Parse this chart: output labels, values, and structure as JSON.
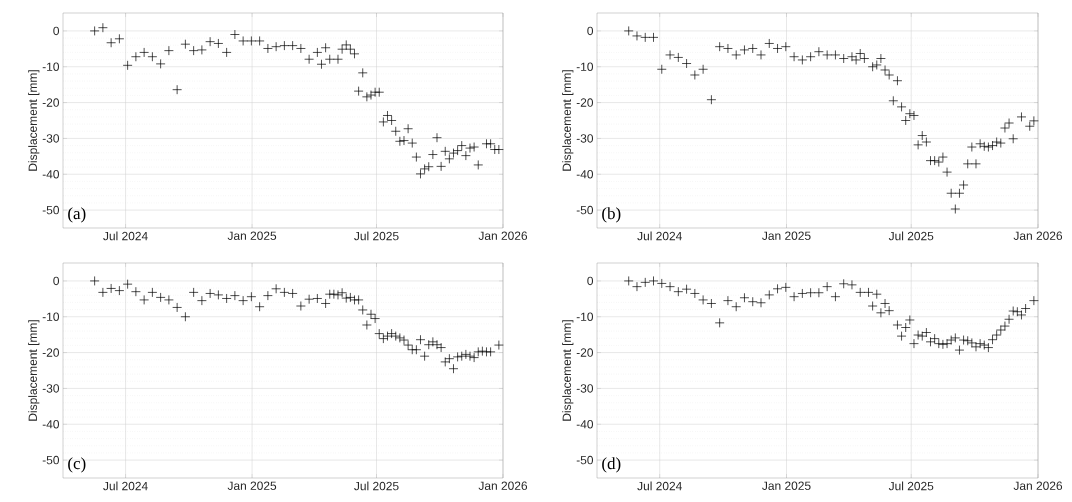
{
  "chart_data": [
    {
      "type": "scatter",
      "ylabel": "Displacement [mm]",
      "annotations": [
        "(a)"
      ],
      "color": "#000000",
      "marker": "cross",
      "grid": true,
      "xlim": [
        "2024-04-01",
        "2026-01-01"
      ],
      "xticks": [
        {
          "value": "2024-07-01",
          "label": "Jul 2024"
        },
        {
          "value": "2025-01-01",
          "label": "Jan 2025"
        },
        {
          "value": "2025-07-01",
          "label": "Jul 2025"
        },
        {
          "value": "2026-01-01",
          "label": "Jan 2026"
        }
      ],
      "ylim": [
        -55,
        5
      ],
      "yticks": [
        -50,
        -40,
        -30,
        -20,
        -10,
        0
      ],
      "x": [
        "2024-05-17",
        "2024-05-29",
        "2024-06-10",
        "2024-06-22",
        "2024-07-04",
        "2024-07-16",
        "2024-07-28",
        "2024-08-09",
        "2024-08-21",
        "2024-09-02",
        "2024-09-14",
        "2024-09-26",
        "2024-10-08",
        "2024-10-20",
        "2024-11-01",
        "2024-11-13",
        "2024-11-25",
        "2024-12-07",
        "2024-12-19",
        "2024-12-31",
        "2025-01-12",
        "2025-01-24",
        "2025-02-05",
        "2025-02-17",
        "2025-03-01",
        "2025-03-13",
        "2025-03-25",
        "2025-04-06",
        "2025-04-12",
        "2025-04-18",
        "2025-04-24",
        "2025-05-06",
        "2025-05-12",
        "2025-05-18",
        "2025-05-24",
        "2025-05-30",
        "2025-06-05",
        "2025-06-11",
        "2025-06-17",
        "2025-06-23",
        "2025-06-29",
        "2025-07-05",
        "2025-07-11",
        "2025-07-17",
        "2025-07-23",
        "2025-07-29",
        "2025-08-04",
        "2025-08-10",
        "2025-08-16",
        "2025-08-22",
        "2025-08-28",
        "2025-09-03",
        "2025-09-09",
        "2025-09-15",
        "2025-09-21",
        "2025-09-27",
        "2025-10-03",
        "2025-10-09",
        "2025-10-15",
        "2025-10-21",
        "2025-10-27",
        "2025-11-02",
        "2025-11-08",
        "2025-11-14",
        "2025-11-20",
        "2025-11-26",
        "2025-12-08",
        "2025-12-14",
        "2025-12-20",
        "2025-12-26"
      ],
      "values": [
        0,
        0.9,
        -3.3,
        -2.2,
        -9.6,
        -7.2,
        -6.0,
        -7.2,
        -9.2,
        -5.5,
        -16.4,
        -3.7,
        -5.5,
        -5.3,
        -3.0,
        -3.5,
        -6.0,
        -1.0,
        -2.8,
        -2.8,
        -2.8,
        -4.9,
        -4.4,
        -4.1,
        -4.1,
        -4.9,
        -7.9,
        -6.0,
        -9.3,
        -4.7,
        -7.9,
        -7.9,
        -5.1,
        -3.9,
        -5.1,
        -6.4,
        -16.8,
        -11.7,
        -18.4,
        -17.9,
        -17.1,
        -17.1,
        -25.4,
        -23.6,
        -25.0,
        -28.0,
        -30.8,
        -30.6,
        -27.3,
        -31.3,
        -35.2,
        -39.9,
        -38.5,
        -37.9,
        -34.5,
        -29.8,
        -37.8,
        -33.6,
        -35.7,
        -34.1,
        -33.4,
        -32.0,
        -34.8,
        -32.7,
        -32.4,
        -37.4,
        -31.5,
        -31.5,
        -33.1,
        -33.1
      ]
    },
    {
      "type": "scatter",
      "ylabel": "Displacement [mm]",
      "annotations": [
        "(b)"
      ],
      "color": "#000000",
      "marker": "cross",
      "grid": true,
      "xlim": [
        "2024-04-01",
        "2026-01-01"
      ],
      "xticks": [
        {
          "value": "2024-07-01",
          "label": "Jul 2024"
        },
        {
          "value": "2025-01-01",
          "label": "Jan 2025"
        },
        {
          "value": "2025-07-01",
          "label": "Jul 2025"
        },
        {
          "value": "2026-01-01",
          "label": "Jan 2026"
        }
      ],
      "ylim": [
        -55,
        5
      ],
      "yticks": [
        -50,
        -40,
        -30,
        -20,
        -10,
        0
      ],
      "x": [
        "2024-05-17",
        "2024-05-29",
        "2024-06-10",
        "2024-06-22",
        "2024-07-04",
        "2024-07-16",
        "2024-07-28",
        "2024-08-09",
        "2024-08-21",
        "2024-09-02",
        "2024-09-14",
        "2024-09-26",
        "2024-10-08",
        "2024-10-20",
        "2024-11-01",
        "2024-11-13",
        "2024-11-25",
        "2024-12-07",
        "2024-12-19",
        "2024-12-31",
        "2025-01-12",
        "2025-01-24",
        "2025-02-05",
        "2025-02-17",
        "2025-03-01",
        "2025-03-13",
        "2025-03-25",
        "2025-04-06",
        "2025-04-12",
        "2025-04-18",
        "2025-04-24",
        "2025-05-06",
        "2025-05-12",
        "2025-05-18",
        "2025-05-24",
        "2025-05-30",
        "2025-06-05",
        "2025-06-11",
        "2025-06-17",
        "2025-06-23",
        "2025-06-29",
        "2025-07-05",
        "2025-07-11",
        "2025-07-17",
        "2025-07-23",
        "2025-07-29",
        "2025-08-04",
        "2025-08-10",
        "2025-08-16",
        "2025-08-22",
        "2025-08-28",
        "2025-09-03",
        "2025-09-09",
        "2025-09-15",
        "2025-09-21",
        "2025-09-27",
        "2025-10-03",
        "2025-10-09",
        "2025-10-15",
        "2025-10-21",
        "2025-10-27",
        "2025-11-02",
        "2025-11-08",
        "2025-11-14",
        "2025-11-20",
        "2025-11-26",
        "2025-12-08",
        "2025-12-20",
        "2025-12-26"
      ],
      "values": [
        0,
        -1.4,
        -1.8,
        -1.8,
        -10.7,
        -6.7,
        -7.4,
        -9.1,
        -12.3,
        -10.7,
        -19.2,
        -4.4,
        -4.9,
        -6.7,
        -5.3,
        -4.9,
        -6.7,
        -3.5,
        -4.9,
        -4.4,
        -7.2,
        -8.1,
        -7.2,
        -5.8,
        -6.7,
        -6.7,
        -7.7,
        -7.2,
        -8.1,
        -6.3,
        -7.7,
        -10.0,
        -9.5,
        -7.7,
        -10.9,
        -12.3,
        -19.5,
        -13.9,
        -21.2,
        -25.0,
        -23.1,
        -23.6,
        -31.8,
        -29.2,
        -31.0,
        -36.2,
        -36.2,
        -36.6,
        -35.2,
        -39.4,
        -45.3,
        -49.7,
        -45.3,
        -43.0,
        -37.1,
        -32.4,
        -37.1,
        -31.5,
        -32.2,
        -32.4,
        -32.0,
        -31.0,
        -31.3,
        -27.1,
        -25.7,
        -30.1,
        -24.0,
        -26.6,
        -25.1
      ]
    },
    {
      "type": "scatter",
      "ylabel": "Displacement [mm]",
      "annotations": [
        "(c)"
      ],
      "color": "#000000",
      "marker": "cross",
      "grid": true,
      "xlim": [
        "2024-04-01",
        "2026-01-01"
      ],
      "xticks": [
        {
          "value": "2024-07-01",
          "label": "Jul 2024"
        },
        {
          "value": "2025-01-01",
          "label": "Jan 2025"
        },
        {
          "value": "2025-07-01",
          "label": "Jul 2025"
        },
        {
          "value": "2026-01-01",
          "label": "Jan 2026"
        }
      ],
      "ylim": [
        -55,
        5
      ],
      "yticks": [
        -50,
        -40,
        -30,
        -20,
        -10,
        0
      ],
      "x": [
        "2024-05-17",
        "2024-05-29",
        "2024-06-10",
        "2024-06-22",
        "2024-07-04",
        "2024-07-16",
        "2024-07-28",
        "2024-08-09",
        "2024-08-21",
        "2024-09-02",
        "2024-09-14",
        "2024-09-26",
        "2024-10-08",
        "2024-10-20",
        "2024-11-01",
        "2024-11-13",
        "2024-11-25",
        "2024-12-07",
        "2024-12-19",
        "2024-12-31",
        "2025-01-12",
        "2025-01-24",
        "2025-02-05",
        "2025-02-17",
        "2025-03-01",
        "2025-03-13",
        "2025-03-25",
        "2025-04-06",
        "2025-04-18",
        "2025-04-24",
        "2025-04-30",
        "2025-05-06",
        "2025-05-12",
        "2025-05-18",
        "2025-05-24",
        "2025-05-30",
        "2025-06-05",
        "2025-06-11",
        "2025-06-17",
        "2025-06-23",
        "2025-06-29",
        "2025-07-05",
        "2025-07-11",
        "2025-07-17",
        "2025-07-23",
        "2025-07-29",
        "2025-08-04",
        "2025-08-10",
        "2025-08-16",
        "2025-08-22",
        "2025-08-28",
        "2025-09-03",
        "2025-09-09",
        "2025-09-15",
        "2025-09-21",
        "2025-09-27",
        "2025-10-03",
        "2025-10-09",
        "2025-10-15",
        "2025-10-21",
        "2025-10-27",
        "2025-11-02",
        "2025-11-08",
        "2025-11-14",
        "2025-11-20",
        "2025-11-26",
        "2025-12-02",
        "2025-12-08",
        "2025-12-14",
        "2025-12-26"
      ],
      "values": [
        0,
        -3.2,
        -2.1,
        -2.7,
        -0.9,
        -3.0,
        -5.3,
        -3.2,
        -4.6,
        -5.3,
        -7.4,
        -10.0,
        -3.2,
        -5.5,
        -3.5,
        -3.9,
        -4.9,
        -4.1,
        -5.5,
        -4.4,
        -7.2,
        -4.1,
        -2.2,
        -3.2,
        -3.5,
        -7.0,
        -5.1,
        -4.9,
        -6.3,
        -3.7,
        -3.7,
        -3.9,
        -3.3,
        -4.8,
        -4.6,
        -5.3,
        -5.3,
        -8.1,
        -12.3,
        -9.3,
        -10.5,
        -14.7,
        -16.1,
        -15.4,
        -14.7,
        -15.4,
        -15.9,
        -16.5,
        -17.9,
        -19.2,
        -19.2,
        -16.4,
        -21.0,
        -17.8,
        -17.0,
        -17.8,
        -18.6,
        -22.6,
        -21.7,
        -24.5,
        -21.2,
        -21.0,
        -20.5,
        -21.0,
        -21.4,
        -19.8,
        -19.6,
        -19.8,
        -19.8,
        -17.9
      ]
    },
    {
      "type": "scatter",
      "ylabel": "Displacement [mm]",
      "annotations": [
        "(d)"
      ],
      "color": "#000000",
      "marker": "cross",
      "grid": true,
      "xlim": [
        "2024-04-01",
        "2026-01-01"
      ],
      "xticks": [
        {
          "value": "2024-07-01",
          "label": "Jul 2024"
        },
        {
          "value": "2025-01-01",
          "label": "Jan 2025"
        },
        {
          "value": "2025-07-01",
          "label": "Jul 2025"
        },
        {
          "value": "2026-01-01",
          "label": "Jan 2026"
        }
      ],
      "ylim": [
        -55,
        5
      ],
      "yticks": [
        -50,
        -40,
        -30,
        -20,
        -10,
        0
      ],
      "x": [
        "2024-05-17",
        "2024-05-29",
        "2024-06-10",
        "2024-06-22",
        "2024-07-04",
        "2024-07-16",
        "2024-07-28",
        "2024-08-09",
        "2024-08-21",
        "2024-09-02",
        "2024-09-14",
        "2024-09-26",
        "2024-10-08",
        "2024-10-20",
        "2024-11-01",
        "2024-11-13",
        "2024-11-25",
        "2024-12-07",
        "2024-12-19",
        "2024-12-31",
        "2025-01-12",
        "2025-01-24",
        "2025-02-05",
        "2025-02-17",
        "2025-03-01",
        "2025-03-13",
        "2025-03-25",
        "2025-04-06",
        "2025-04-18",
        "2025-04-30",
        "2025-05-06",
        "2025-05-12",
        "2025-05-18",
        "2025-05-24",
        "2025-05-30",
        "2025-06-11",
        "2025-06-17",
        "2025-06-23",
        "2025-06-29",
        "2025-07-05",
        "2025-07-11",
        "2025-07-17",
        "2025-07-23",
        "2025-07-29",
        "2025-08-04",
        "2025-08-10",
        "2025-08-16",
        "2025-08-22",
        "2025-08-28",
        "2025-09-03",
        "2025-09-09",
        "2025-09-15",
        "2025-09-21",
        "2025-09-27",
        "2025-10-03",
        "2025-10-09",
        "2025-10-15",
        "2025-10-21",
        "2025-10-27",
        "2025-11-02",
        "2025-11-08",
        "2025-11-14",
        "2025-11-20",
        "2025-11-26",
        "2025-12-02",
        "2025-12-08",
        "2025-12-14",
        "2025-12-26"
      ],
      "values": [
        0,
        -1.6,
        -0.4,
        0,
        -0.7,
        -1.6,
        -3.0,
        -2.3,
        -3.5,
        -5.3,
        -6.3,
        -11.7,
        -5.5,
        -7.2,
        -4.7,
        -5.8,
        -6.1,
        -3.9,
        -2.2,
        -1.8,
        -4.4,
        -3.5,
        -3.3,
        -3.3,
        -1.6,
        -4.4,
        -0.8,
        -1.1,
        -3.2,
        -3.2,
        -7.0,
        -3.7,
        -8.9,
        -6.3,
        -8.3,
        -12.3,
        -15.4,
        -13.0,
        -10.9,
        -17.5,
        -15.1,
        -15.4,
        -14.4,
        -17.0,
        -16.1,
        -17.5,
        -17.7,
        -17.5,
        -16.5,
        -15.9,
        -19.3,
        -16.5,
        -16.7,
        -17.3,
        -18.4,
        -17.5,
        -17.9,
        -18.6,
        -16.4,
        -15.1,
        -13.7,
        -12.6,
        -10.7,
        -8.4,
        -8.6,
        -9.5,
        -7.7,
        -5.5
      ]
    }
  ]
}
